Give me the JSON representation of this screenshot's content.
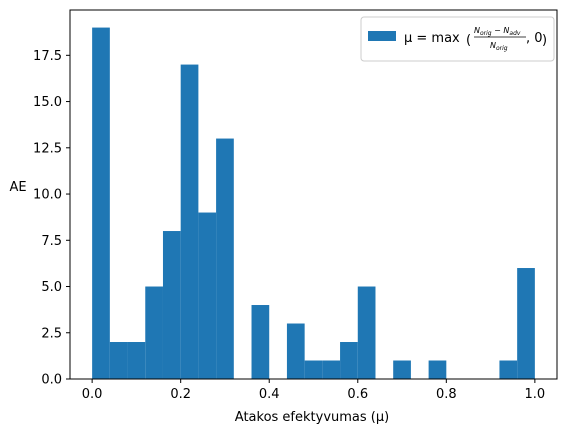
{
  "chart_data": {
    "type": "bar",
    "bin_edges": [
      0,
      0.04,
      0.08,
      0.12,
      0.16,
      0.2,
      0.24,
      0.28,
      0.32,
      0.36,
      0.4,
      0.44,
      0.48,
      0.52,
      0.56,
      0.6,
      0.64,
      0.68,
      0.72,
      0.76,
      0.8,
      0.84,
      0.88,
      0.92,
      0.96,
      1.0
    ],
    "values": [
      19,
      2,
      2,
      5,
      8,
      17,
      9,
      13,
      0,
      4,
      0,
      3,
      1,
      1,
      2,
      5,
      0,
      1,
      0,
      1,
      0,
      0,
      0,
      1,
      6
    ],
    "xlabel": "Atakos efektyvumas (μ)",
    "ylabel": "AE",
    "xlim": [
      -0.05,
      1.05
    ],
    "ylim": [
      0,
      19.95
    ],
    "xticks": [
      0.0,
      0.2,
      0.4,
      0.6,
      0.8,
      1.0
    ],
    "xtick_labels": [
      "0.0",
      "0.2",
      "0.4",
      "0.6",
      "0.8",
      "1.0"
    ],
    "yticks": [
      0.0,
      2.5,
      5.0,
      7.5,
      10.0,
      12.5,
      15.0,
      17.5
    ],
    "ytick_labels": [
      "0.0",
      "2.5",
      "5.0",
      "7.5",
      "10.0",
      "12.5",
      "15.0",
      "17.5"
    ],
    "bar_color": "#1f77b4",
    "grid": false,
    "legend_position": "top-right",
    "legend": {
      "prefix": "μ = max",
      "numerator": "N",
      "numerator_sub1": "orig",
      "minus": " − N",
      "numerator_sub2": "adv",
      "denominator": "N",
      "denominator_sub": "orig",
      "suffix": ", 0"
    }
  }
}
